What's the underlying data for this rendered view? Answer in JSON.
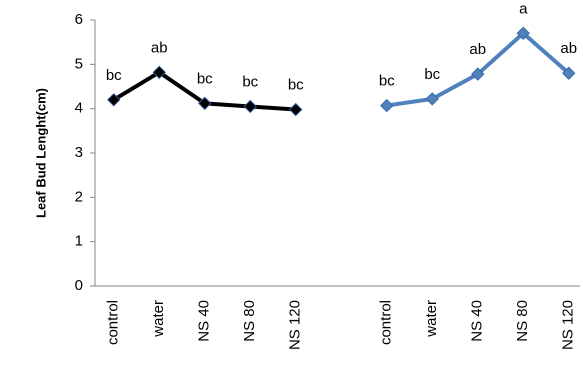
{
  "chart_data": {
    "type": "line",
    "y_label": "Leaf Bud Lenght(cm)",
    "categories": [
      "control",
      "water",
      "NS 40",
      "NS 80",
      "NS 120",
      null,
      "control",
      "water",
      "NS 40",
      "NS 80",
      "NS 120"
    ],
    "series": [
      {
        "color": "#000000",
        "values": [
          4.2,
          4.82,
          4.12,
          4.05,
          3.98,
          null,
          null,
          null,
          null,
          null,
          null
        ],
        "labels": [
          "bc",
          "ab",
          "bc",
          "bc",
          "bc",
          null,
          null,
          null,
          null,
          null,
          null
        ]
      },
      {
        "color": "#4f81bd",
        "values": [
          null,
          null,
          null,
          null,
          null,
          null,
          4.07,
          4.22,
          4.78,
          5.7,
          4.8
        ],
        "labels": [
          null,
          null,
          null,
          null,
          null,
          null,
          "bc",
          "bc",
          "ab",
          "a",
          "ab"
        ]
      }
    ],
    "ylim": [
      0,
      6
    ],
    "yticks": [
      0,
      1,
      2,
      3,
      4,
      5,
      6
    ]
  }
}
